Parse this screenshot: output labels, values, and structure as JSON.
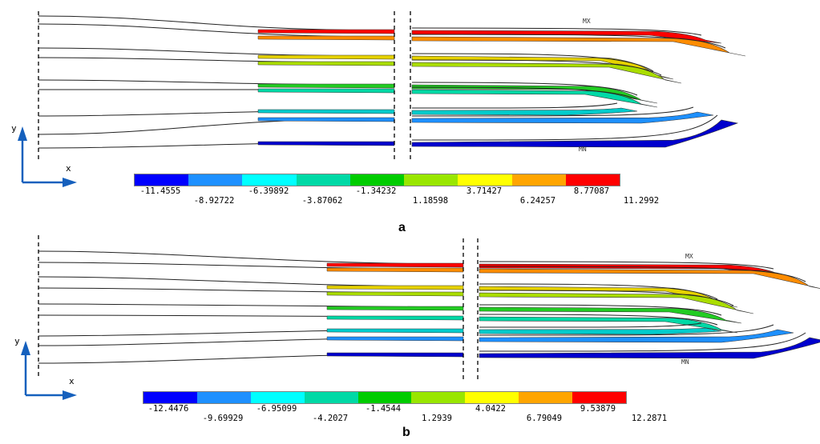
{
  "panel_a": {
    "caption": "a",
    "axis_x": "x",
    "axis_y": "y",
    "max_label": "MX",
    "min_label": "MN",
    "legend_values": [
      "-11.4555",
      "-8.92722",
      "-6.39892",
      "-3.87062",
      "-1.34232",
      "1.18598",
      "3.71427",
      "6.24257",
      "8.77087",
      "11.2992"
    ]
  },
  "panel_b": {
    "caption": "b",
    "axis_x": "x",
    "axis_y": "y",
    "max_label": "MX",
    "min_label": "MN",
    "legend_values": [
      "-12.4476",
      "-9.69929",
      "-6.95099",
      "-4.2027",
      "-1.4544",
      "1.2939",
      "4.0422",
      "6.79049",
      "9.53879",
      "12.2871"
    ]
  },
  "legend_colors": [
    "#0000ff",
    "#1e90ff",
    "#00ffff",
    "#00d9a6",
    "#00cc00",
    "#99e600",
    "#ffff00",
    "#ffa500",
    "#ff0000"
  ],
  "strip_colors": [
    "#ff0000",
    "#ff8c00",
    "#e6d200",
    "#aadd00",
    "#22cc22",
    "#00d9a6",
    "#00cccc",
    "#1e90ff",
    "#0000cd"
  ]
}
